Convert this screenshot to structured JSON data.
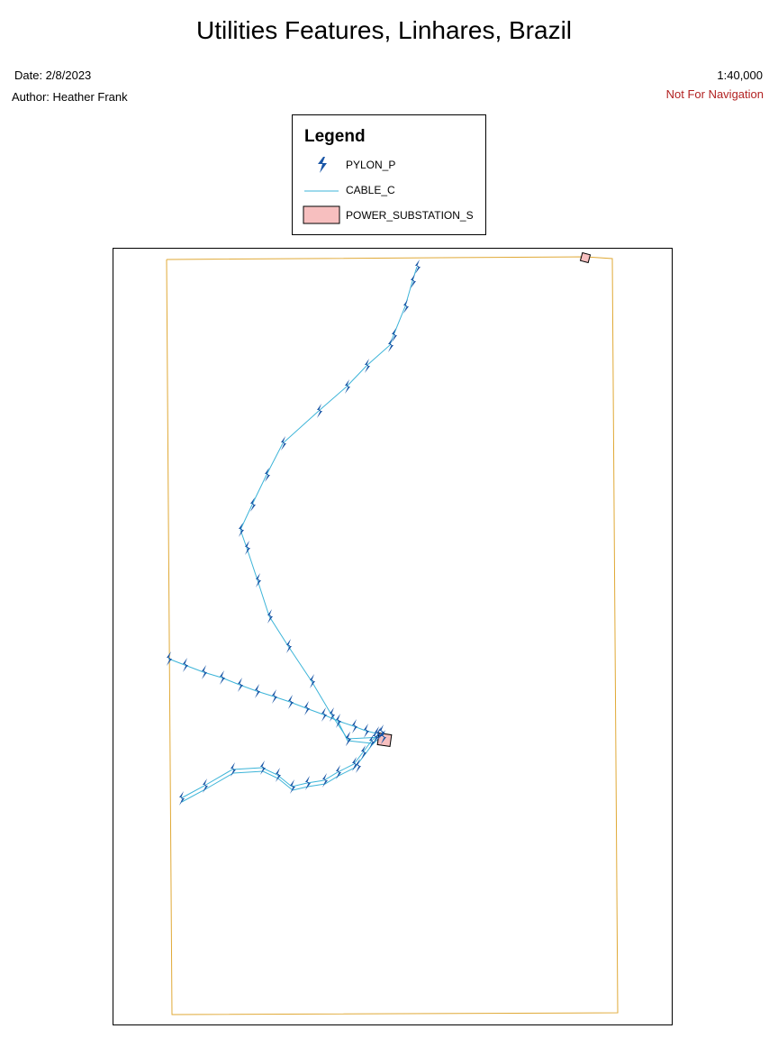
{
  "map": {
    "title": "Utilities Features, Linhares, Brazil",
    "date": "Date: 2/8/2023",
    "author": "Author: Heather Frank",
    "scale": "1:40,000",
    "warning": "Not For Navigation",
    "colors": {
      "boundary": "#e0a936",
      "cable": "#3cb4d8",
      "pylon": "#1a56a6",
      "substation_fill": "#f7bfbf",
      "warning_text": "#b22222"
    }
  },
  "legend": {
    "title": "Legend",
    "items": [
      {
        "label": "PYLON_P",
        "symbol": "lightning-icon"
      },
      {
        "label": "CABLE_C",
        "symbol": "line"
      },
      {
        "label": "POWER_SUBSTATION_S",
        "symbol": "square"
      }
    ]
  }
}
